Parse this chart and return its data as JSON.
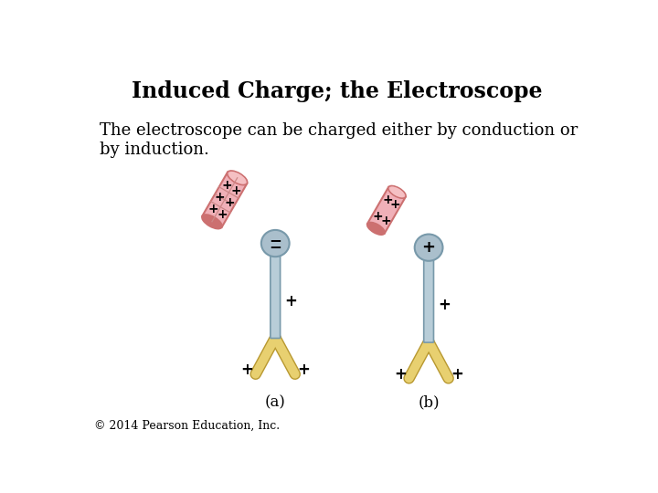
{
  "title": "Induced Charge; the Electroscope",
  "body_text": "The electroscope can be charged either by conduction or\nby induction.",
  "footer_text": "© 2014 Pearson Education, Inc.",
  "background_color": "#ffffff",
  "title_fontsize": 17,
  "body_fontsize": 13,
  "footer_fontsize": 9,
  "label_a": "(a)",
  "label_b": "(b)",
  "knob_color": "#aabfcc",
  "knob_edge_color": "#7899aa",
  "stem_color": "#b8cdd8",
  "stem_edge_color": "#7899aa",
  "leaf_color": "#e8d070",
  "leaf_edge_color": "#b89830",
  "rod_color": "#f0b0b8",
  "rod_edge_color": "#cc7070",
  "rod_dark": "#d07070"
}
